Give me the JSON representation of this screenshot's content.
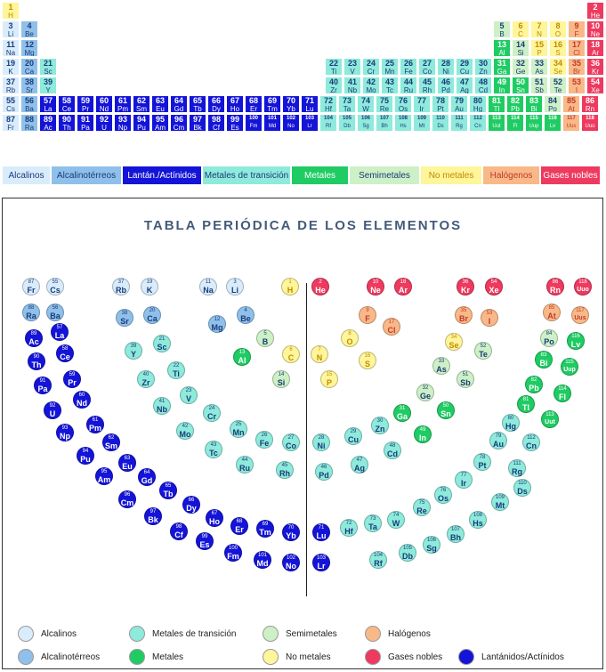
{
  "colors": {
    "alcalino": "#d9ecfb",
    "alcalinoterreo": "#8fc0ea",
    "lantanido": "#1414d8",
    "transicion": "#8eeadb",
    "metal": "#1fcc63",
    "semimetal": "#cdf0c6",
    "nometal": "#fff59a",
    "halogeno": "#f9b888",
    "gasnoble": "#ee3a5f"
  },
  "legend_bar": [
    {
      "cat": "alcalino",
      "label": "Alcalinos"
    },
    {
      "cat": "alcalinoterreo",
      "label": "Alcalinotérreos"
    },
    {
      "cat": "lantanido",
      "label": "Lantán./Actínidos"
    },
    {
      "cat": "transicion",
      "label": "Metales de transición"
    },
    {
      "cat": "metal",
      "label": "Metales"
    },
    {
      "cat": "semimetal",
      "label": "Semimetales"
    },
    {
      "cat": "nometal",
      "label": "No metales"
    },
    {
      "cat": "halogeno",
      "label": "Halógenos"
    },
    {
      "cat": "gasnoble",
      "label": "Gases nobles"
    }
  ],
  "title": "TABLA PERIÓDICA DE LOS ELEMENTOS",
  "legend2": [
    {
      "cat": "alcalino",
      "label": "Alcalinos"
    },
    {
      "cat": "transicion",
      "label": "Metales de transición"
    },
    {
      "cat": "semimetal",
      "label": "Semimetales"
    },
    {
      "cat": "halogeno",
      "label": "Halógenos"
    },
    {
      "cat": "alcalinoterreo",
      "label": "Alcalinotérreos"
    },
    {
      "cat": "metal",
      "label": "Metales"
    },
    {
      "cat": "nometal",
      "label": "No metales"
    },
    {
      "cat": "gasnoble",
      "label": "Gases nobles"
    },
    {
      "cat": "lantanido",
      "label": "Lantánidos/Actínidos"
    }
  ],
  "elements": [
    {
      "z": 1,
      "s": "H",
      "c": "nometal"
    },
    {
      "z": 2,
      "s": "He",
      "c": "gasnoble"
    },
    {
      "z": 3,
      "s": "Li",
      "c": "alcalino"
    },
    {
      "z": 4,
      "s": "Be",
      "c": "alcalinoterreo"
    },
    {
      "z": 5,
      "s": "B",
      "c": "semimetal"
    },
    {
      "z": 6,
      "s": "C",
      "c": "nometal"
    },
    {
      "z": 7,
      "s": "N",
      "c": "nometal"
    },
    {
      "z": 8,
      "s": "O",
      "c": "nometal"
    },
    {
      "z": 9,
      "s": "F",
      "c": "halogeno"
    },
    {
      "z": 10,
      "s": "Ne",
      "c": "gasnoble"
    },
    {
      "z": 11,
      "s": "Na",
      "c": "alcalino"
    },
    {
      "z": 12,
      "s": "Mg",
      "c": "alcalinoterreo"
    },
    {
      "z": 13,
      "s": "Al",
      "c": "metal"
    },
    {
      "z": 14,
      "s": "Si",
      "c": "semimetal"
    },
    {
      "z": 15,
      "s": "P",
      "c": "nometal"
    },
    {
      "z": 16,
      "s": "S",
      "c": "nometal"
    },
    {
      "z": 17,
      "s": "Cl",
      "c": "halogeno"
    },
    {
      "z": 18,
      "s": "Ar",
      "c": "gasnoble"
    },
    {
      "z": 19,
      "s": "K",
      "c": "alcalino"
    },
    {
      "z": 20,
      "s": "Ca",
      "c": "alcalinoterreo"
    },
    {
      "z": 21,
      "s": "Sc",
      "c": "transicion"
    },
    {
      "z": 22,
      "s": "Ti",
      "c": "transicion"
    },
    {
      "z": 23,
      "s": "V",
      "c": "transicion"
    },
    {
      "z": 24,
      "s": "Cr",
      "c": "transicion"
    },
    {
      "z": 25,
      "s": "Mn",
      "c": "transicion"
    },
    {
      "z": 26,
      "s": "Fe",
      "c": "transicion"
    },
    {
      "z": 27,
      "s": "Co",
      "c": "transicion"
    },
    {
      "z": 28,
      "s": "Ni",
      "c": "transicion"
    },
    {
      "z": 29,
      "s": "Cu",
      "c": "transicion"
    },
    {
      "z": 30,
      "s": "Zn",
      "c": "transicion"
    },
    {
      "z": 31,
      "s": "Ga",
      "c": "metal"
    },
    {
      "z": 32,
      "s": "Ge",
      "c": "semimetal"
    },
    {
      "z": 33,
      "s": "As",
      "c": "semimetal"
    },
    {
      "z": 34,
      "s": "Se",
      "c": "nometal"
    },
    {
      "z": 35,
      "s": "Br",
      "c": "halogeno"
    },
    {
      "z": 36,
      "s": "Kr",
      "c": "gasnoble"
    },
    {
      "z": 37,
      "s": "Rb",
      "c": "alcalino"
    },
    {
      "z": 38,
      "s": "Sr",
      "c": "alcalinoterreo"
    },
    {
      "z": 39,
      "s": "Y",
      "c": "transicion"
    },
    {
      "z": 40,
      "s": "Zr",
      "c": "transicion"
    },
    {
      "z": 41,
      "s": "Nb",
      "c": "transicion"
    },
    {
      "z": 42,
      "s": "Mo",
      "c": "transicion"
    },
    {
      "z": 43,
      "s": "Tc",
      "c": "transicion"
    },
    {
      "z": 44,
      "s": "Ru",
      "c": "transicion"
    },
    {
      "z": 45,
      "s": "Rh",
      "c": "transicion"
    },
    {
      "z": 46,
      "s": "Pd",
      "c": "transicion"
    },
    {
      "z": 47,
      "s": "Ag",
      "c": "transicion"
    },
    {
      "z": 48,
      "s": "Cd",
      "c": "transicion"
    },
    {
      "z": 49,
      "s": "In",
      "c": "metal"
    },
    {
      "z": 50,
      "s": "Sn",
      "c": "metal"
    },
    {
      "z": 51,
      "s": "Sb",
      "c": "semimetal"
    },
    {
      "z": 52,
      "s": "Te",
      "c": "semimetal"
    },
    {
      "z": 53,
      "s": "I",
      "c": "halogeno"
    },
    {
      "z": 54,
      "s": "Xe",
      "c": "gasnoble"
    },
    {
      "z": 55,
      "s": "Cs",
      "c": "alcalino"
    },
    {
      "z": 56,
      "s": "Ba",
      "c": "alcalinoterreo"
    },
    {
      "z": 57,
      "s": "La",
      "c": "lantanido"
    },
    {
      "z": 58,
      "s": "Ce",
      "c": "lantanido"
    },
    {
      "z": 59,
      "s": "Pr",
      "c": "lantanido"
    },
    {
      "z": 60,
      "s": "Nd",
      "c": "lantanido"
    },
    {
      "z": 61,
      "s": "Pm",
      "c": "lantanido"
    },
    {
      "z": 62,
      "s": "Sm",
      "c": "lantanido"
    },
    {
      "z": 63,
      "s": "Eu",
      "c": "lantanido"
    },
    {
      "z": 64,
      "s": "Gd",
      "c": "lantanido"
    },
    {
      "z": 65,
      "s": "Tb",
      "c": "lantanido"
    },
    {
      "z": 66,
      "s": "Dy",
      "c": "lantanido"
    },
    {
      "z": 67,
      "s": "Ho",
      "c": "lantanido"
    },
    {
      "z": 68,
      "s": "Er",
      "c": "lantanido"
    },
    {
      "z": 69,
      "s": "Tm",
      "c": "lantanido"
    },
    {
      "z": 70,
      "s": "Yb",
      "c": "lantanido"
    },
    {
      "z": 71,
      "s": "Lu",
      "c": "lantanido"
    },
    {
      "z": 72,
      "s": "Hf",
      "c": "transicion"
    },
    {
      "z": 73,
      "s": "Ta",
      "c": "transicion"
    },
    {
      "z": 74,
      "s": "W",
      "c": "transicion"
    },
    {
      "z": 75,
      "s": "Re",
      "c": "transicion"
    },
    {
      "z": 76,
      "s": "Os",
      "c": "transicion"
    },
    {
      "z": 77,
      "s": "Ir",
      "c": "transicion"
    },
    {
      "z": 78,
      "s": "Pt",
      "c": "transicion"
    },
    {
      "z": 79,
      "s": "Au",
      "c": "transicion"
    },
    {
      "z": 80,
      "s": "Hg",
      "c": "transicion"
    },
    {
      "z": 81,
      "s": "Tl",
      "c": "metal"
    },
    {
      "z": 82,
      "s": "Pb",
      "c": "metal"
    },
    {
      "z": 83,
      "s": "Bi",
      "c": "metal"
    },
    {
      "z": 84,
      "s": "Po",
      "c": "semimetal"
    },
    {
      "z": 85,
      "s": "At",
      "c": "halogeno"
    },
    {
      "z": 86,
      "s": "Rn",
      "c": "gasnoble"
    },
    {
      "z": 87,
      "s": "Fr",
      "c": "alcalino"
    },
    {
      "z": 88,
      "s": "Ra",
      "c": "alcalinoterreo"
    },
    {
      "z": 89,
      "s": "Ac",
      "c": "lantanido"
    },
    {
      "z": 90,
      "s": "Th",
      "c": "lantanido"
    },
    {
      "z": 91,
      "s": "Pa",
      "c": "lantanido"
    },
    {
      "z": 92,
      "s": "U",
      "c": "lantanido"
    },
    {
      "z": 93,
      "s": "Np",
      "c": "lantanido"
    },
    {
      "z": 94,
      "s": "Pu",
      "c": "lantanido"
    },
    {
      "z": 95,
      "s": "Am",
      "c": "lantanido"
    },
    {
      "z": 96,
      "s": "Cm",
      "c": "lantanido"
    },
    {
      "z": 97,
      "s": "Bk",
      "c": "lantanido"
    },
    {
      "z": 98,
      "s": "Cf",
      "c": "lantanido"
    },
    {
      "z": 99,
      "s": "Es",
      "c": "lantanido"
    },
    {
      "z": 100,
      "s": "Fm",
      "c": "lantanido"
    },
    {
      "z": 101,
      "s": "Md",
      "c": "lantanido"
    },
    {
      "z": 102,
      "s": "No",
      "c": "lantanido"
    },
    {
      "z": 103,
      "s": "Lr",
      "c": "lantanido"
    },
    {
      "z": 104,
      "s": "Rf",
      "c": "transicion"
    },
    {
      "z": 105,
      "s": "Db",
      "c": "transicion"
    },
    {
      "z": 106,
      "s": "Sg",
      "c": "transicion"
    },
    {
      "z": 107,
      "s": "Bh",
      "c": "transicion"
    },
    {
      "z": 108,
      "s": "Hs",
      "c": "transicion"
    },
    {
      "z": 109,
      "s": "Mt",
      "c": "transicion"
    },
    {
      "z": 110,
      "s": "Ds",
      "c": "transicion"
    },
    {
      "z": 111,
      "s": "Rg",
      "c": "transicion"
    },
    {
      "z": 112,
      "s": "Cn",
      "c": "transicion"
    },
    {
      "z": 113,
      "s": "Uut",
      "c": "metal"
    },
    {
      "z": 114,
      "s": "Fl",
      "c": "metal"
    },
    {
      "z": 115,
      "s": "Uup",
      "c": "metal"
    },
    {
      "z": 116,
      "s": "Lv",
      "c": "metal"
    },
    {
      "z": 117,
      "s": "Uus",
      "c": "halogeno"
    },
    {
      "z": 118,
      "s": "Uuo",
      "c": "gasnoble"
    }
  ]
}
